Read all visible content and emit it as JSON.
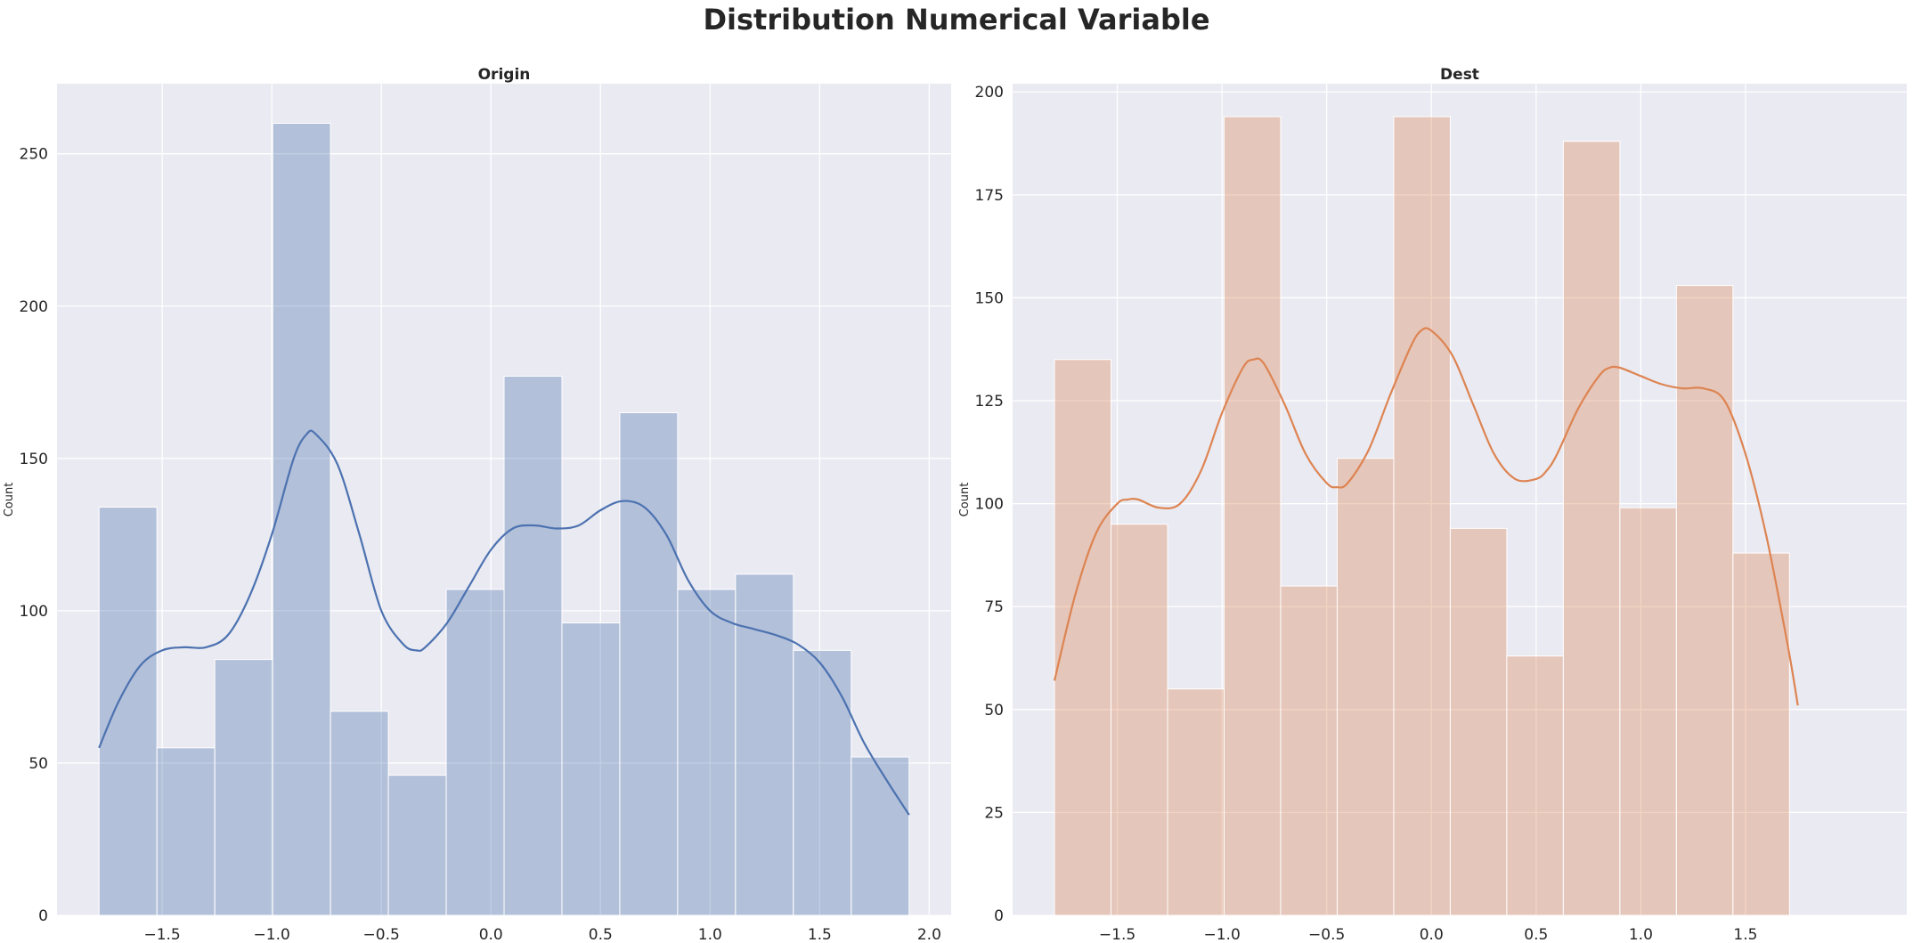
{
  "figure": {
    "title": "Distribution Numerical Variable"
  },
  "colors": {
    "background": "#eaeaf2",
    "grid": "#ffffff",
    "text": "#262626"
  },
  "chart_data": [
    {
      "type": "bar",
      "subtype": "histogram-with-kde",
      "title": "Origin",
      "xlabel": "",
      "ylabel": "Count",
      "xlim": [
        -1.98,
        2.1
      ],
      "ylim": [
        0,
        273
      ],
      "xticks": [
        -1.5,
        -1.0,
        -0.5,
        0.0,
        0.5,
        1.0,
        1.5,
        2.0
      ],
      "xtick_labels": [
        "−1.5",
        "−1.0",
        "−0.5",
        "0.0",
        "0.5",
        "1.0",
        "1.5",
        "2.0"
      ],
      "yticks": [
        0,
        50,
        100,
        150,
        200,
        250
      ],
      "ytick_labels": [
        "0",
        "50",
        "100",
        "150",
        "200",
        "250"
      ],
      "grid": true,
      "bar_color": "#4c72b0",
      "line_color": "#4c72b0",
      "bin_edges": [
        -1.788,
        -1.524,
        -1.26,
        -0.996,
        -0.732,
        -0.468,
        -0.204,
        0.06,
        0.324,
        0.588,
        0.852,
        1.116,
        1.38,
        1.644,
        1.908
      ],
      "values": [
        134,
        55,
        84,
        260,
        67,
        46,
        107,
        177,
        96,
        165,
        107,
        112,
        87,
        52
      ],
      "kde": {
        "x": [
          -1.788,
          -1.7,
          -1.6,
          -1.5,
          -1.4,
          -1.3,
          -1.2,
          -1.1,
          -1.0,
          -0.9,
          -0.84,
          -0.8,
          -0.7,
          -0.6,
          -0.5,
          -0.4,
          -0.34,
          -0.3,
          -0.2,
          -0.1,
          0.0,
          0.1,
          0.2,
          0.3,
          0.4,
          0.5,
          0.6,
          0.7,
          0.8,
          0.9,
          1.0,
          1.1,
          1.2,
          1.3,
          1.4,
          1.5,
          1.6,
          1.7,
          1.8,
          1.908
        ],
        "y": [
          55,
          70,
          82,
          87,
          88,
          88,
          92,
          105,
          125,
          150,
          158,
          158,
          148,
          125,
          100,
          89,
          87,
          88,
          96,
          108,
          120,
          127,
          128,
          127,
          128,
          133,
          136,
          134,
          125,
          110,
          100,
          96,
          94,
          92,
          89,
          83,
          72,
          57,
          45,
          33
        ]
      }
    },
    {
      "type": "bar",
      "subtype": "histogram-with-kde",
      "title": "Dest",
      "xlabel": "",
      "ylabel": "Count",
      "xlim": [
        -2.0,
        2.27
      ],
      "ylim": [
        0,
        202
      ],
      "xticks": [
        -1.5,
        -1.0,
        -0.5,
        0.0,
        0.5,
        1.0,
        1.5
      ],
      "xtick_labels": [
        "−1.5",
        "−1.0",
        "−0.5",
        "0.0",
        "0.5",
        "1.0",
        "1.5"
      ],
      "yticks": [
        0,
        25,
        50,
        75,
        100,
        125,
        150,
        175,
        200
      ],
      "ytick_labels": [
        "0",
        "25",
        "50",
        "75",
        "100",
        "125",
        "150",
        "175",
        "200"
      ],
      "grid": true,
      "bar_color": "#dd8452",
      "line_color": "#dd8452",
      "bin_edges": [
        -1.8,
        -1.53,
        -1.26,
        -0.99,
        -0.72,
        -0.45,
        -0.18,
        0.09,
        0.36,
        0.63,
        0.9,
        1.17,
        1.44,
        1.71
      ],
      "values": [
        135,
        95,
        55,
        194,
        80,
        111,
        194,
        94,
        63,
        188,
        99,
        153,
        88
      ],
      "kde": {
        "x": [
          -1.8,
          -1.7,
          -1.6,
          -1.5,
          -1.45,
          -1.4,
          -1.3,
          -1.2,
          -1.1,
          -1.0,
          -0.9,
          -0.85,
          -0.8,
          -0.7,
          -0.6,
          -0.5,
          -0.45,
          -0.4,
          -0.3,
          -0.2,
          -0.1,
          -0.05,
          0.0,
          0.1,
          0.2,
          0.3,
          0.4,
          0.5,
          0.55,
          0.6,
          0.7,
          0.8,
          0.85,
          0.9,
          1.0,
          1.1,
          1.2,
          1.3,
          1.4,
          1.5,
          1.6,
          1.7,
          1.75
        ],
        "y": [
          57,
          78,
          93,
          100,
          101,
          101,
          99,
          100,
          108,
          122,
          133,
          135,
          134,
          124,
          112,
          105,
          104,
          105,
          113,
          126,
          138,
          142,
          142,
          136,
          124,
          112,
          106,
          106,
          108,
          112,
          123,
          131,
          133,
          133,
          131,
          129,
          128,
          128,
          125,
          112,
          92,
          66,
          51
        ]
      }
    }
  ]
}
